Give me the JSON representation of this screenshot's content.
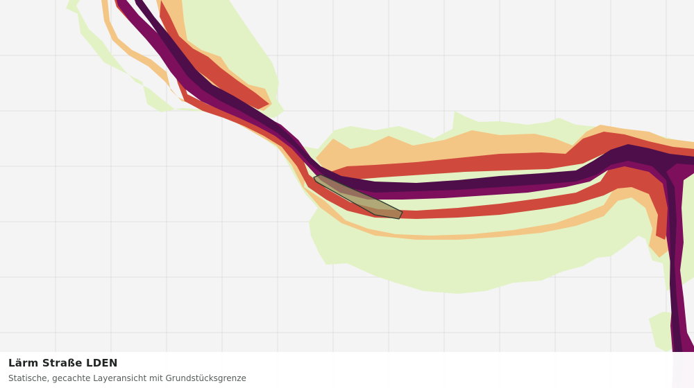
{
  "map": {
    "title": "Lärm Straße LDEN",
    "subtitle": "Statische, gecachte Layeransicht mit Grundstücksgrenze",
    "colors": {
      "background": "#f3f4f3",
      "grid": "#e0e2df",
      "band_1": "#e2f2c4",
      "band_2": "#f4c685",
      "band_3": "#cf4a3c",
      "band_4": "#7d0f5c",
      "band_5": "#4e0e4a",
      "parcel_fill": "#9f8f5e",
      "parcel_stroke": "#2b3a2e"
    }
  }
}
